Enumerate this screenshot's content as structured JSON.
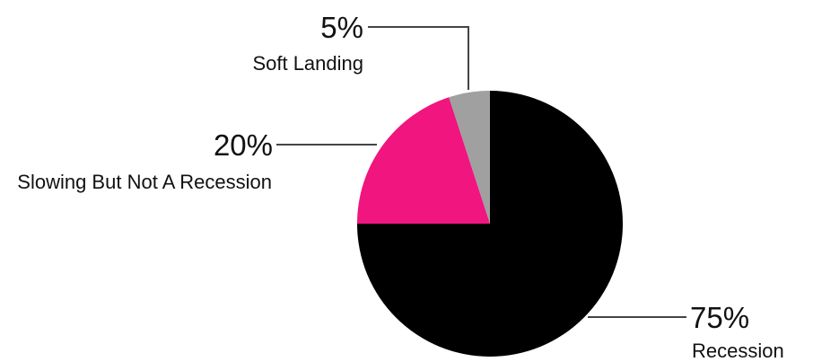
{
  "chart_data": {
    "type": "pie",
    "title": "",
    "slices": [
      {
        "label": "Recession",
        "value": 75,
        "value_label": "75%",
        "color": "#000000"
      },
      {
        "label": "Slowing But Not A Recession",
        "value": 20,
        "value_label": "20%",
        "color": "#f0157f"
      },
      {
        "label": "Soft Landing",
        "value": 5,
        "value_label": "5%",
        "color": "#a0a0a0"
      }
    ]
  }
}
